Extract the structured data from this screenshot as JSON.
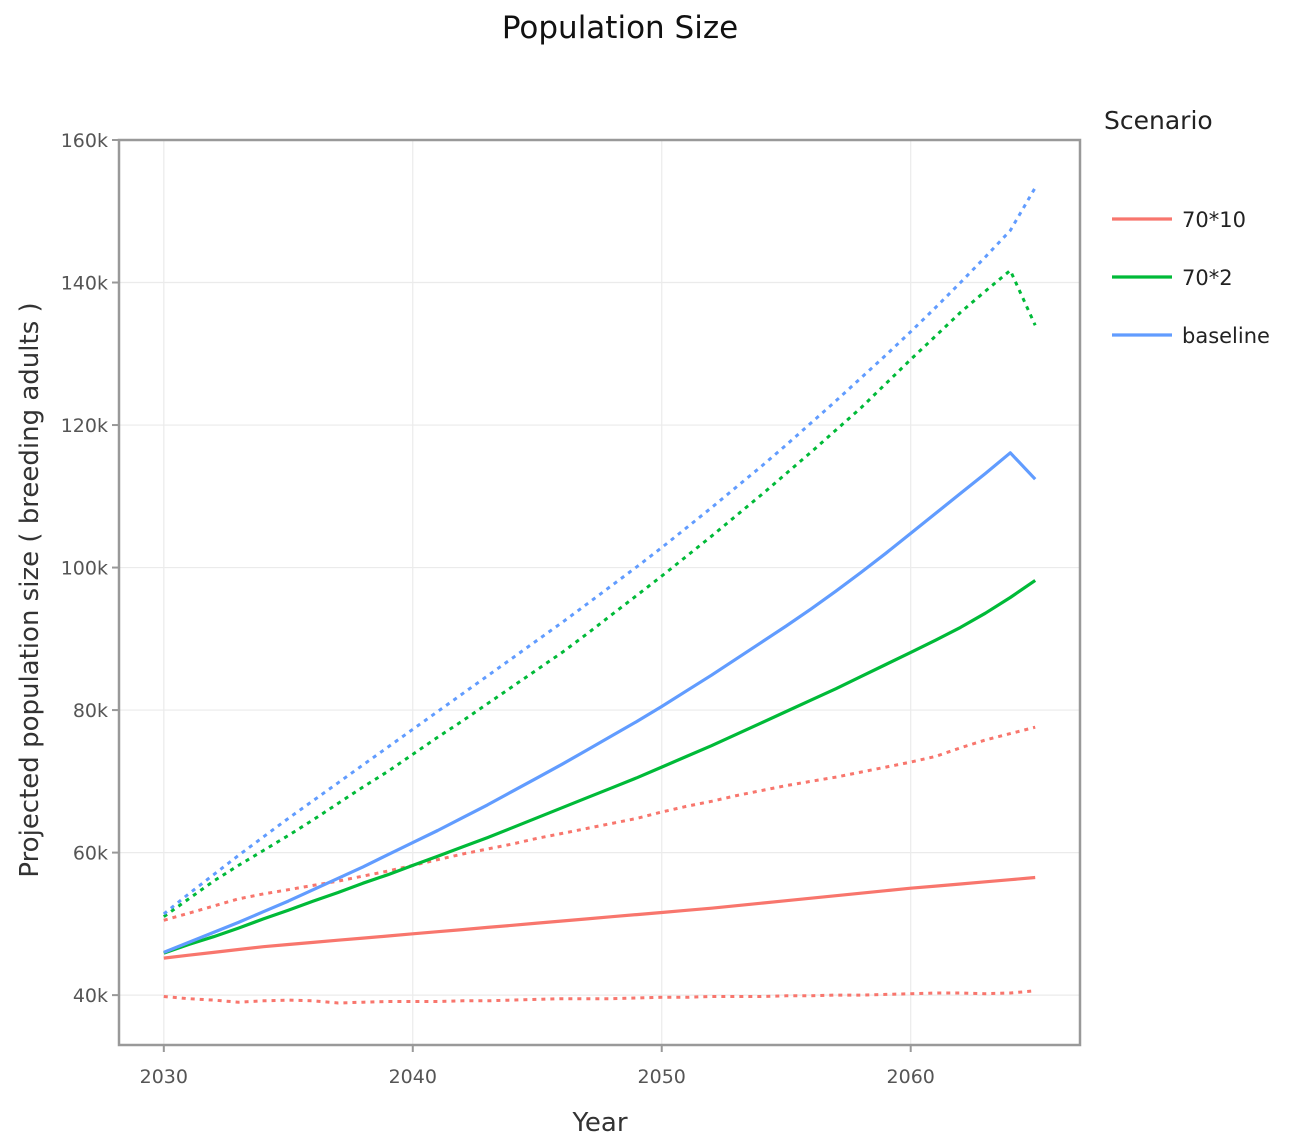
{
  "chart_data": {
    "type": "line",
    "title": "Population Size",
    "xlabel": "Year",
    "ylabel": "Projected population size ( breeding adults )",
    "xlim": [
      2028.2,
      2066.8
    ],
    "ylim": [
      33000,
      160000
    ],
    "xticks": [
      2030,
      2040,
      2050,
      2060
    ],
    "xtick_labels": [
      "2030",
      "2040",
      "2050",
      "2060"
    ],
    "yticks": [
      40000,
      60000,
      80000,
      100000,
      120000,
      140000,
      160000
    ],
    "ytick_labels": [
      "40k",
      "60k",
      "80k",
      "100k",
      "120k",
      "140k",
      "160k"
    ],
    "grid": true,
    "legend": {
      "title": "Scenario",
      "position": "right"
    },
    "x": [
      2030,
      2031,
      2032,
      2033,
      2034,
      2035,
      2036,
      2037,
      2038,
      2039,
      2040,
      2041,
      2042,
      2043,
      2044,
      2045,
      2046,
      2047,
      2048,
      2049,
      2050,
      2051,
      2052,
      2053,
      2054,
      2055,
      2056,
      2057,
      2058,
      2059,
      2060,
      2061,
      2062,
      2063,
      2064,
      2065
    ],
    "series": [
      {
        "name": "70*10",
        "color": "#F8766D",
        "values": [
          45200,
          45600,
          46000,
          46400,
          46800,
          47100,
          47400,
          47700,
          48000,
          48300,
          48600,
          48900,
          49200,
          49500,
          49800,
          50100,
          50400,
          50700,
          51000,
          51300,
          51600,
          51900,
          52200,
          52550,
          52900,
          53250,
          53600,
          53950,
          54300,
          54650,
          55000,
          55300,
          55600,
          55900,
          56200,
          56500
        ],
        "upper": [
          50500,
          51500,
          52500,
          53500,
          54200,
          54800,
          55400,
          56000,
          56700,
          57400,
          58200,
          59000,
          59800,
          60500,
          61200,
          62000,
          62700,
          63400,
          64100,
          64800,
          65700,
          66500,
          67200,
          68000,
          68700,
          69400,
          70000,
          70600,
          71300,
          72000,
          72700,
          73500,
          74700,
          75800,
          76700,
          77600
        ],
        "lower": [
          39800,
          39500,
          39300,
          39000,
          39200,
          39300,
          39200,
          38900,
          39000,
          39100,
          39100,
          39100,
          39200,
          39200,
          39300,
          39400,
          39500,
          39500,
          39500,
          39600,
          39700,
          39700,
          39800,
          39800,
          39800,
          39900,
          39900,
          40000,
          40000,
          40100,
          40200,
          40300,
          40300,
          40200,
          40300,
          40600
        ]
      },
      {
        "name": "70*2",
        "color": "#00BA38",
        "values": [
          45900,
          47100,
          48200,
          49400,
          50700,
          51900,
          53200,
          54400,
          55700,
          56900,
          58200,
          59500,
          60800,
          62100,
          63500,
          64900,
          66300,
          67700,
          69100,
          70500,
          72000,
          73500,
          75000,
          76600,
          78200,
          79800,
          81400,
          83000,
          84700,
          86400,
          88100,
          89800,
          91600,
          93600,
          95800,
          98200
        ],
        "upper": [
          51000,
          53500,
          56000,
          58200,
          60300,
          62400,
          64600,
          66900,
          69200,
          71400,
          73800,
          76200,
          78500,
          80900,
          83300,
          85700,
          88100,
          90700,
          93400,
          96100,
          98800,
          101600,
          104400,
          107300,
          110200,
          113200,
          116200,
          119300,
          122400,
          125800,
          129200,
          132500,
          135800,
          138800,
          141700,
          134000
        ]
      },
      {
        "name": "baseline",
        "color": "#619CFF",
        "values": [
          46000,
          47400,
          48800,
          50200,
          51700,
          53200,
          54800,
          56400,
          58000,
          59700,
          61400,
          63100,
          64900,
          66700,
          68600,
          70500,
          72400,
          74400,
          76400,
          78400,
          80500,
          82700,
          84900,
          87200,
          89500,
          91800,
          94200,
          96700,
          99300,
          102000,
          104800,
          107600,
          110400,
          113200,
          116100,
          112400
        ],
        "upper": [
          51400,
          54200,
          56900,
          59600,
          62200,
          64800,
          67300,
          69800,
          72300,
          74800,
          77300,
          79800,
          82300,
          84800,
          87300,
          89800,
          92300,
          94900,
          97500,
          100100,
          102800,
          105600,
          108400,
          111300,
          114200,
          117200,
          120300,
          123400,
          126600,
          129800,
          133100,
          136500,
          140000,
          143600,
          147300,
          153300
        ]
      }
    ]
  }
}
